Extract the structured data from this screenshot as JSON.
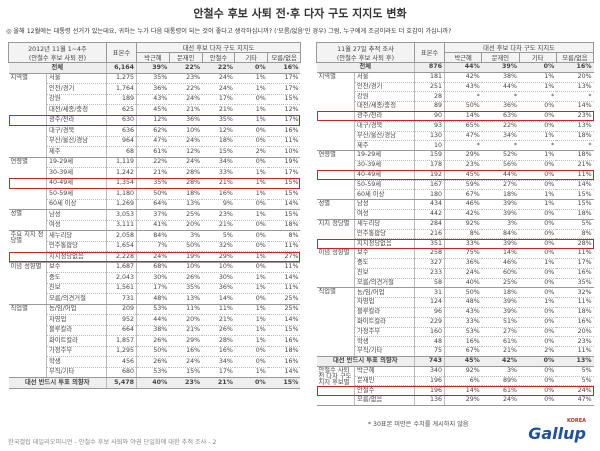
{
  "header": {
    "title": "안철수 후보 사퇴 전·후 다자 구도 지지도 변화",
    "question": "◎ 올해 12월에는 대통령 선거가 있는데요, 귀하는 누가 다음 대통령이 되는 것이 좋다고 생각하십니까? ('모름/없음'인 경우) 그럼, 누구에게 조금이라도 더 호감이 가십니까?"
  },
  "left": {
    "period": "2012년 11월 1~4주",
    "period_note": "(안철수 후보 사퇴 전)",
    "n_label": "표본수",
    "group_title": "대선 후보 다자 구도 지지도",
    "columns": [
      "박근혜",
      "문재인",
      "안철수",
      "기타",
      "모름/없음"
    ],
    "total": [
      "전체",
      "6,164",
      "39%",
      "22%",
      "22%",
      "0%",
      "16%"
    ],
    "groups": [
      {
        "label": "지역별",
        "rows": [
          [
            "서울",
            "1,275",
            "35%",
            "23%",
            "24%",
            "1%",
            "17%"
          ],
          [
            "인천/경기",
            "1,764",
            "36%",
            "22%",
            "24%",
            "1%",
            "17%"
          ],
          [
            "강원",
            "189",
            "43%",
            "24%",
            "17%",
            "0%",
            "15%"
          ],
          [
            "대전/세종/충청",
            "625",
            "45%",
            "21%",
            "21%",
            "1%",
            "12%"
          ],
          [
            "광주/전라",
            "630",
            "12%",
            "36%",
            "35%",
            "1%",
            "17%"
          ],
          [
            "대구/경북",
            "636",
            "62%",
            "10%",
            "12%",
            "0%",
            "16%"
          ],
          [
            "부산/울산/경남",
            "964",
            "47%",
            "24%",
            "18%",
            "0%",
            "11%"
          ],
          [
            "제주",
            "68",
            "61%",
            "12%",
            "15%",
            "2%",
            "10%"
          ]
        ]
      },
      {
        "label": "연령별",
        "rows": [
          [
            "19-29세",
            "1,119",
            "22%",
            "24%",
            "34%",
            "0%",
            "19%"
          ],
          [
            "30-39세",
            "1,242",
            "21%",
            "28%",
            "33%",
            "1%",
            "17%"
          ],
          [
            "40-49세",
            "1,354",
            "35%",
            "28%",
            "21%",
            "1%",
            "15%"
          ],
          [
            "50-59세",
            "1,180",
            "50%",
            "18%",
            "16%",
            "1%",
            "15%"
          ],
          [
            "60세 이상",
            "1,269",
            "64%",
            "13%",
            "9%",
            "0%",
            "14%"
          ]
        ]
      },
      {
        "label": "성별",
        "rows": [
          [
            "남성",
            "3,053",
            "37%",
            "25%",
            "23%",
            "1%",
            "15%"
          ],
          [
            "여성",
            "3,111",
            "41%",
            "20%",
            "21%",
            "0%",
            "18%"
          ]
        ]
      },
      {
        "label": "주요 지지 정당별",
        "rows": [
          [
            "새누리당",
            "2,058",
            "84%",
            "3%",
            "5%",
            "0%",
            "8%"
          ],
          [
            "민주통합당",
            "1,654",
            "7%",
            "50%",
            "32%",
            "0%",
            "11%"
          ],
          [
            "지지정당없음",
            "2,228",
            "24%",
            "19%",
            "29%",
            "1%",
            "27%"
          ]
        ]
      },
      {
        "label": "이념 성향별",
        "rows": [
          [
            "보수",
            "1,687",
            "68%",
            "10%",
            "10%",
            "0%",
            "11%"
          ],
          [
            "중도",
            "2,043",
            "30%",
            "26%",
            "30%",
            "1%",
            "14%"
          ],
          [
            "진보",
            "1,561",
            "17%",
            "35%",
            "36%",
            "1%",
            "11%"
          ],
          [
            "모름/의견거절",
            "731",
            "48%",
            "13%",
            "14%",
            "0%",
            "25%"
          ]
        ]
      },
      {
        "label": "직업별",
        "rows": [
          [
            "농/임/어업",
            "209",
            "53%",
            "11%",
            "11%",
            "1%",
            "25%"
          ],
          [
            "자영업",
            "952",
            "44%",
            "20%",
            "21%",
            "1%",
            "14%"
          ],
          [
            "블루칼라",
            "664",
            "38%",
            "21%",
            "26%",
            "1%",
            "15%"
          ],
          [
            "화이트칼라",
            "1,857",
            "26%",
            "29%",
            "28%",
            "1%",
            "16%"
          ],
          [
            "가정주부",
            "1,295",
            "50%",
            "16%",
            "16%",
            "0%",
            "18%"
          ],
          [
            "학생",
            "456",
            "26%",
            "24%",
            "34%",
            "0%",
            "16%"
          ],
          [
            "무직/기타",
            "680",
            "53%",
            "15%",
            "17%",
            "1%",
            "14%"
          ]
        ]
      }
    ],
    "footer_row": [
      "대선 반드시 투표 의향자",
      "5,478",
      "40%",
      "23%",
      "21%",
      "0%",
      "15%"
    ]
  },
  "right": {
    "period": "11월 27일 추적 조사",
    "period_note": "(안철수 후보 사퇴 후)",
    "n_label": "표본수",
    "group_title": "대선 후보 다자 구도 지지도",
    "columns": [
      "박근혜",
      "문재인",
      "기타",
      "모름/없음"
    ],
    "total": [
      "전체",
      "876",
      "44%",
      "39%",
      "0%",
      "16%"
    ],
    "groups": [
      {
        "label": "지역별",
        "rows": [
          [
            "서울",
            "181",
            "42%",
            "38%",
            "1%",
            "20%"
          ],
          [
            "인천/경기",
            "251",
            "43%",
            "44%",
            "1%",
            "13%"
          ],
          [
            "강원",
            "28",
            "*",
            "*",
            "*",
            "*"
          ],
          [
            "대전/세종/충청",
            "89",
            "50%",
            "36%",
            "0%",
            "14%"
          ],
          [
            "광주/전라",
            "90",
            "14%",
            "63%",
            "0%",
            "23%"
          ],
          [
            "대구/경북",
            "93",
            "65%",
            "22%",
            "0%",
            "13%"
          ],
          [
            "부산/울산/경남",
            "130",
            "47%",
            "34%",
            "1%",
            "18%"
          ],
          [
            "제주",
            "10",
            "*",
            "*",
            "*",
            "*"
          ]
        ]
      },
      {
        "label": "연령별",
        "rows": [
          [
            "19-29세",
            "159",
            "29%",
            "52%",
            "1%",
            "18%"
          ],
          [
            "30-39세",
            "178",
            "23%",
            "56%",
            "0%",
            "21%"
          ],
          [
            "40-49세",
            "192",
            "45%",
            "44%",
            "0%",
            "11%"
          ],
          [
            "50-59세",
            "167",
            "59%",
            "27%",
            "0%",
            "14%"
          ],
          [
            "60세 이상",
            "180",
            "67%",
            "18%",
            "1%",
            "15%"
          ]
        ]
      },
      {
        "label": "성별",
        "rows": [
          [
            "남성",
            "434",
            "46%",
            "39%",
            "1%",
            "15%"
          ],
          [
            "여성",
            "442",
            "42%",
            "39%",
            "0%",
            "18%"
          ]
        ]
      },
      {
        "label": "지지 정당별",
        "rows": [
          [
            "새누리당",
            "284",
            "92%",
            "3%",
            "0%",
            "5%"
          ],
          [
            "민주통합당",
            "216",
            "8%",
            "84%",
            "0%",
            "8%"
          ],
          [
            "지지정당없음",
            "351",
            "33%",
            "39%",
            "0%",
            "28%"
          ]
        ]
      },
      {
        "label": "이념 성향별",
        "rows": [
          [
            "보수",
            "258",
            "75%",
            "14%",
            "0%",
            "11%"
          ],
          [
            "중도",
            "327",
            "36%",
            "46%",
            "1%",
            "17%"
          ],
          [
            "진보",
            "233",
            "24%",
            "60%",
            "0%",
            "16%"
          ],
          [
            "모름/의견거절",
            "58",
            "40%",
            "25%",
            "0%",
            "35%"
          ]
        ]
      },
      {
        "label": "직업별",
        "rows": [
          [
            "농/임/어업",
            "31",
            "50%",
            "18%",
            "0%",
            "32%"
          ],
          [
            "자영업",
            "124",
            "48%",
            "39%",
            "1%",
            "11%"
          ],
          [
            "블루칼라",
            "96",
            "43%",
            "39%",
            "0%",
            "18%"
          ],
          [
            "화이트칼라",
            "229",
            "33%",
            "51%",
            "0%",
            "16%"
          ],
          [
            "가정주부",
            "160",
            "53%",
            "27%",
            "0%",
            "20%"
          ],
          [
            "학생",
            "48",
            "16%",
            "61%",
            "0%",
            "23%"
          ],
          [
            "무직/기타",
            "75",
            "67%",
            "21%",
            "2%",
            "11%"
          ]
        ]
      }
    ],
    "footer_row": [
      "대선 반드시 투표 의향자",
      "743",
      "45%",
      "42%",
      "0%",
      "13%"
    ],
    "extra_group": {
      "label": "안철수 사퇴 전 다자 구도 지지 후보별",
      "rows": [
        [
          "박근혜",
          "340",
          "92%",
          "3%",
          "0%",
          "5%"
        ],
        [
          "문재인",
          "196",
          "6%",
          "89%",
          "0%",
          "5%"
        ],
        [
          "안철수",
          "196",
          "14%",
          "61%",
          "0%",
          "24%"
        ],
        [
          "모름/없음",
          "136",
          "29%",
          "24%",
          "0%",
          "47%"
        ]
      ]
    },
    "footnote": "* 30표본 미만은 수치를 게시하지 않음"
  },
  "footer": {
    "source": "한국갤럽 데일리오피니언 - 안철수 후보 사퇴와 야권 단일화에 대한 추적 조사 - 2",
    "logo": "Gallup",
    "logo_sub": "KOREA"
  }
}
